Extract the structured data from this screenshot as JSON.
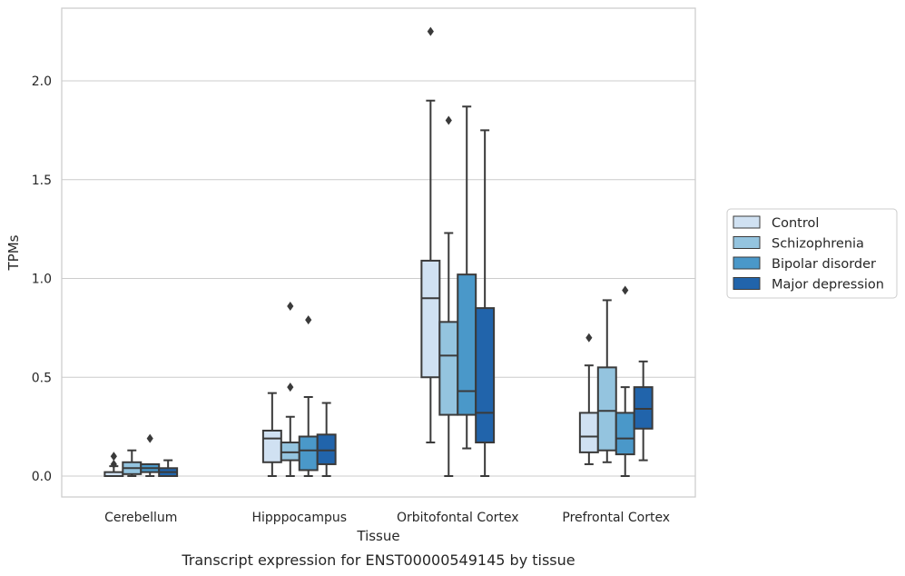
{
  "chart_data": {
    "type": "box",
    "title": "",
    "caption": "Transcript expression for ENST00000549145 by tissue",
    "xlabel": "Tissue",
    "ylabel": "TPMs",
    "ylim": [
      -0.11,
      2.37
    ],
    "yticks": [
      "0.0",
      "0.5",
      "1.0",
      "1.5",
      "2.0"
    ],
    "ytick_values": [
      0.0,
      0.5,
      1.0,
      1.5,
      2.0
    ],
    "grid": "horizontal",
    "legend_position": "right",
    "categories": [
      "Cerebellum",
      "Hipppocampus",
      "Orbitofontal Cortex",
      "Prefrontal Cortex"
    ],
    "series": [
      {
        "name": "Control",
        "color": "#d0e1f2",
        "boxes": [
          {
            "whislo": 0.0,
            "q1": 0.0,
            "med": 0.0,
            "q3": 0.02,
            "whishi": 0.05,
            "fliers": [
              0.06,
              0.1
            ]
          },
          {
            "whislo": 0.0,
            "q1": 0.07,
            "med": 0.19,
            "q3": 0.23,
            "whishi": 0.42,
            "fliers": []
          },
          {
            "whislo": 0.17,
            "q1": 0.5,
            "med": 0.9,
            "q3": 1.09,
            "whishi": 1.9,
            "fliers": [
              2.25
            ]
          },
          {
            "whislo": 0.06,
            "q1": 0.12,
            "med": 0.2,
            "q3": 0.32,
            "whishi": 0.56,
            "fliers": [
              0.7
            ]
          }
        ]
      },
      {
        "name": "Schizophrenia",
        "color": "#94c4df",
        "boxes": [
          {
            "whislo": 0.0,
            "q1": 0.01,
            "med": 0.04,
            "q3": 0.07,
            "whishi": 0.13,
            "fliers": []
          },
          {
            "whislo": 0.0,
            "q1": 0.08,
            "med": 0.12,
            "q3": 0.17,
            "whishi": 0.3,
            "fliers": [
              0.45,
              0.86
            ]
          },
          {
            "whislo": 0.0,
            "q1": 0.31,
            "med": 0.61,
            "q3": 0.78,
            "whishi": 1.23,
            "fliers": [
              1.8
            ]
          },
          {
            "whislo": 0.07,
            "q1": 0.13,
            "med": 0.33,
            "q3": 0.55,
            "whishi": 0.89,
            "fliers": []
          }
        ]
      },
      {
        "name": "Bipolar disorder",
        "color": "#4a98c9",
        "boxes": [
          {
            "whislo": 0.0,
            "q1": 0.02,
            "med": 0.04,
            "q3": 0.06,
            "whishi": 0.06,
            "fliers": [
              0.19
            ]
          },
          {
            "whislo": 0.0,
            "q1": 0.03,
            "med": 0.13,
            "q3": 0.2,
            "whishi": 0.4,
            "fliers": [
              0.79
            ]
          },
          {
            "whislo": 0.14,
            "q1": 0.31,
            "med": 0.43,
            "q3": 1.02,
            "whishi": 1.87,
            "fliers": []
          },
          {
            "whislo": 0.0,
            "q1": 0.11,
            "med": 0.19,
            "q3": 0.32,
            "whishi": 0.45,
            "fliers": [
              0.94
            ]
          }
        ]
      },
      {
        "name": "Major depression",
        "color": "#2164ab",
        "boxes": [
          {
            "whislo": 0.0,
            "q1": 0.0,
            "med": 0.02,
            "q3": 0.04,
            "whishi": 0.08,
            "fliers": []
          },
          {
            "whislo": 0.0,
            "q1": 0.06,
            "med": 0.13,
            "q3": 0.21,
            "whishi": 0.37,
            "fliers": []
          },
          {
            "whislo": 0.0,
            "q1": 0.17,
            "med": 0.32,
            "q3": 0.85,
            "whishi": 1.75,
            "fliers": []
          },
          {
            "whislo": 0.08,
            "q1": 0.24,
            "med": 0.34,
            "q3": 0.45,
            "whishi": 0.58,
            "fliers": []
          }
        ]
      }
    ]
  }
}
